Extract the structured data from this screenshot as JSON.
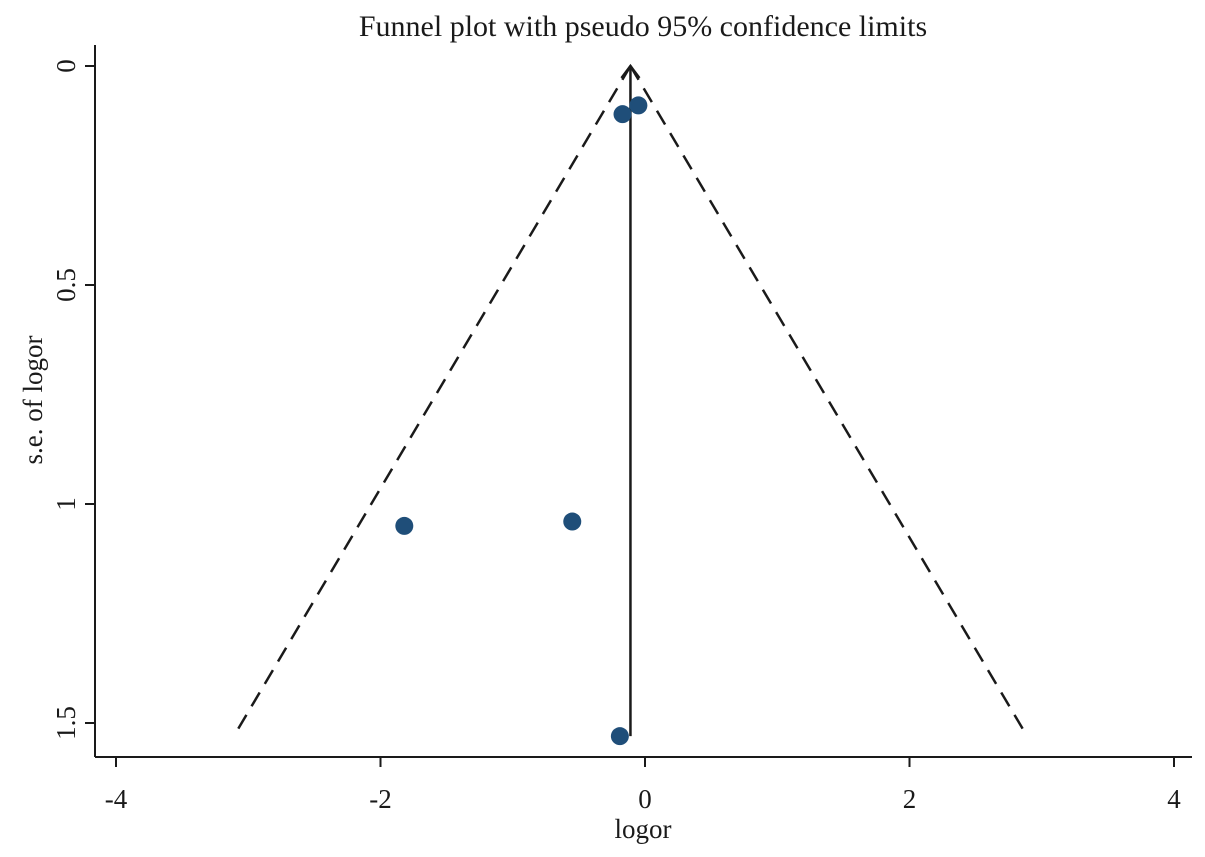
{
  "chart_data": {
    "type": "scatter",
    "title": "Funnel plot with pseudo 95% confidence limits",
    "xlabel": "logor",
    "ylabel": "s.e. of logor",
    "xlim": [
      -4,
      4
    ],
    "ylim": [
      0,
      1.53
    ],
    "y_reversed": true,
    "grid": false,
    "x_ticks": [
      -4,
      -2,
      0,
      2,
      4
    ],
    "x_tick_labels": [
      "-4",
      "-2",
      "0",
      "2",
      "4"
    ],
    "y_ticks": [
      0,
      0.5,
      1,
      1.5
    ],
    "y_tick_labels": [
      "0",
      "0.5",
      "1",
      "1.5"
    ],
    "pooled_estimate": -0.11,
    "ci_multiplier": 1.96,
    "se_max": 1.53,
    "series": [
      {
        "points": [
          {
            "x": -0.05,
            "y": 0.09
          },
          {
            "x": -0.17,
            "y": 0.11
          },
          {
            "x": -0.55,
            "y": 1.04
          },
          {
            "x": -1.82,
            "y": 1.05
          },
          {
            "x": -0.19,
            "y": 1.53
          }
        ],
        "color": "#1f4e79"
      }
    ],
    "line_color": "#1a1a1a"
  }
}
